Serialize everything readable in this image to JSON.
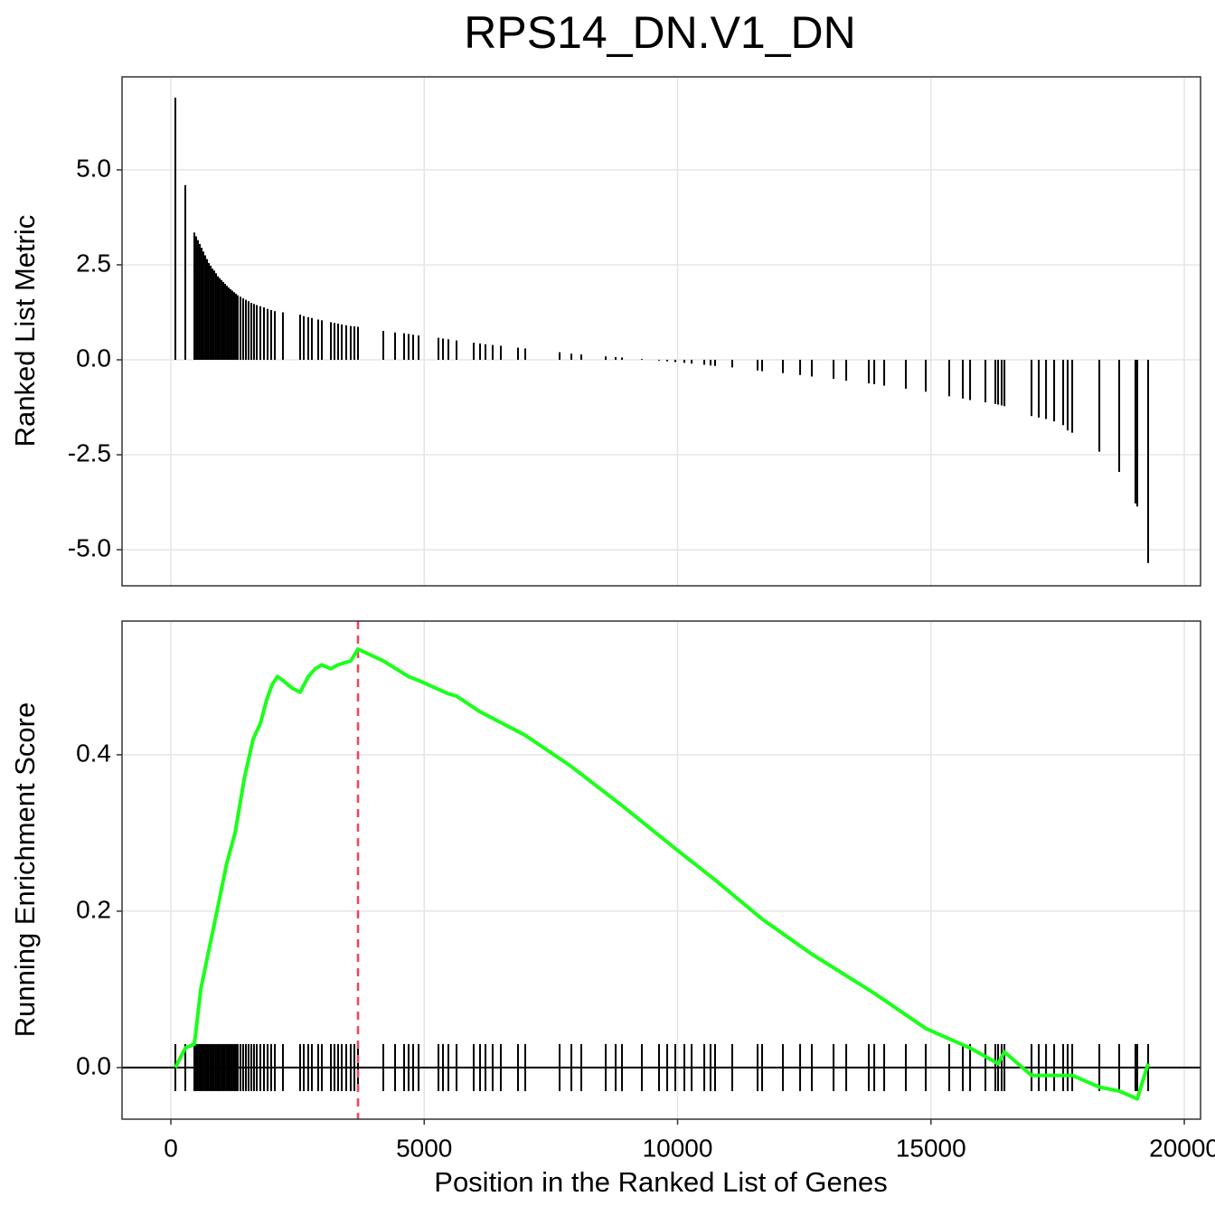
{
  "chart_data": [
    {
      "type": "bar",
      "title": "RPS14_DN.V1_DN",
      "y_label": "Ranked List Metric",
      "color": "#000000",
      "grid": true,
      "xlim": [
        -963,
        20320
      ],
      "xticks": [
        0,
        5000,
        10000,
        15000,
        20000
      ],
      "ylim": [
        -5.95,
        7.45
      ],
      "yticks": [
        {
          "value": 5,
          "label": "5.0"
        },
        {
          "value": 2.5,
          "label": "2.5"
        },
        {
          "value": 0,
          "label": "0.0"
        },
        {
          "value": -2.5,
          "label": "-2.5"
        },
        {
          "value": -5,
          "label": "-5.0"
        }
      ],
      "x": [
        89,
        285,
        464,
        500,
        535,
        571,
        607,
        642,
        678,
        714,
        749,
        785,
        821,
        856,
        892,
        928,
        963,
        999,
        1035,
        1070,
        1106,
        1142,
        1178,
        1213,
        1249,
        1285,
        1320,
        1374,
        1427,
        1481,
        1534,
        1588,
        1641,
        1695,
        1766,
        1838,
        1909,
        1980,
        2052,
        2212,
        2551,
        2623,
        2712,
        2783,
        2908,
        2980,
        3158,
        3229,
        3301,
        3372,
        3461,
        3550,
        3622,
        3693,
        4193,
        4425,
        4603,
        4692,
        4781,
        4889,
        5281,
        5370,
        5477,
        5638,
        5977,
        6102,
        6209,
        6351,
        6512,
        6851,
        6994,
        7672,
        7904,
        8100,
        8582,
        8778,
        8903,
        9295,
        9634,
        9795,
        9955,
        10134,
        10277,
        10527,
        10651,
        10740,
        11079,
        11579,
        11668,
        12079,
        12418,
        12650,
        13078,
        13328,
        13774,
        13881,
        14077,
        14505,
        14898,
        15361,
        15629,
        15772,
        16075,
        16271,
        16325,
        16396,
        16450,
        16985,
        17128,
        17271,
        17431,
        17609,
        17698,
        17788,
        18323,
        18715,
        19036,
        19072,
        19286
      ],
      "values": [
        6.9,
        4.6,
        3.35,
        3.25,
        3.15,
        3.05,
        2.95,
        2.85,
        2.75,
        2.65,
        2.55,
        2.48,
        2.4,
        2.35,
        2.28,
        2.2,
        2.15,
        2.1,
        2.05,
        2.0,
        1.95,
        1.9,
        1.86,
        1.82,
        1.78,
        1.74,
        1.7,
        1.66,
        1.62,
        1.58,
        1.54,
        1.5,
        1.47,
        1.44,
        1.41,
        1.38,
        1.34,
        1.31,
        1.28,
        1.25,
        1.19,
        1.15,
        1.12,
        1.1,
        1.06,
        1.04,
        0.99,
        0.97,
        0.95,
        0.93,
        0.91,
        0.89,
        0.88,
        0.87,
        0.76,
        0.72,
        0.7,
        0.68,
        0.66,
        0.64,
        0.58,
        0.56,
        0.54,
        0.51,
        0.45,
        0.43,
        0.41,
        0.39,
        0.37,
        0.32,
        0.3,
        0.2,
        0.16,
        0.14,
        0.09,
        0.07,
        0.06,
        0.02,
        -0.02,
        -0.04,
        -0.06,
        -0.08,
        -0.1,
        -0.13,
        -0.15,
        -0.16,
        -0.2,
        -0.28,
        -0.3,
        -0.35,
        -0.4,
        -0.44,
        -0.5,
        -0.55,
        -0.62,
        -0.64,
        -0.68,
        -0.76,
        -0.84,
        -0.96,
        -1.02,
        -1.06,
        -1.12,
        -1.16,
        -1.18,
        -1.2,
        -1.22,
        -1.48,
        -1.52,
        -1.56,
        -1.62,
        -1.72,
        -1.86,
        -1.92,
        -2.42,
        -2.95,
        -3.78,
        -3.86,
        -5.35
      ]
    },
    {
      "type": "line",
      "y_label": "Running Enrichment Score",
      "x_label": "Position in the Ranked List of Genes",
      "color": "#1aff1a",
      "grid": true,
      "peak_x": 3693,
      "peak_color": "#f2435a",
      "hits_color": "#000000",
      "xlim": [
        -963,
        20320
      ],
      "xticks": [
        0,
        5000,
        10000,
        15000,
        20000
      ],
      "ylim": [
        -0.066,
        0.571
      ],
      "yticks": [
        {
          "value": 0,
          "label": "0.0"
        },
        {
          "value": 0.2,
          "label": "0.2"
        },
        {
          "value": 0.4,
          "label": "0.4"
        }
      ],
      "x": [
        89,
        285,
        464,
        590,
        750,
        910,
        1100,
        1267,
        1450,
        1624,
        1766,
        1890,
        2000,
        2105,
        2212,
        2400,
        2551,
        2712,
        2850,
        2980,
        3158,
        3301,
        3550,
        3693,
        4193,
        4692,
        4889,
        5477,
        5638,
        6102,
        6994,
        7904,
        8903,
        9955,
        10740,
        11668,
        12650,
        13881,
        14898,
        15772,
        16325,
        16450,
        16985,
        17788,
        18323,
        18715,
        19072,
        19286
      ],
      "values": [
        0,
        0.025,
        0.03,
        0.1,
        0.15,
        0.2,
        0.26,
        0.3,
        0.37,
        0.42,
        0.44,
        0.47,
        0.49,
        0.5,
        0.495,
        0.485,
        0.48,
        0.5,
        0.51,
        0.515,
        0.51,
        0.515,
        0.52,
        0.535,
        0.52,
        0.5,
        0.495,
        0.478,
        0.475,
        0.455,
        0.425,
        0.385,
        0.335,
        0.28,
        0.24,
        0.19,
        0.145,
        0.095,
        0.05,
        0.025,
        0.005,
        0.02,
        -0.01,
        -0.01,
        -0.025,
        -0.03,
        -0.04,
        0.005
      ]
    }
  ]
}
